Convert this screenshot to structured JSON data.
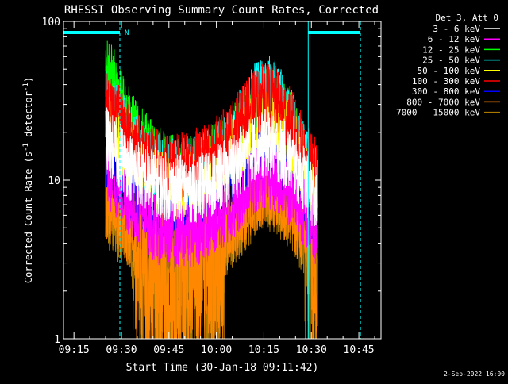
{
  "chart_data": {
    "type": "line",
    "title": "RHESSI Observing Summary Count Rates, Corrected",
    "xlabel": "Start Time (30-Jan-18 09:11:42)",
    "ylabel": "Corrected Count Rate (s⁻¹ detector⁻¹)",
    "ylabel_parts": {
      "pre": "Corrected Count Rate (s",
      "sup1": "-1",
      "mid": " detector",
      "sup2": "-1",
      "post": ")"
    },
    "yscale": "log",
    "ylim": [
      1,
      100
    ],
    "y_ticks": [
      {
        "value": 1,
        "label": "1"
      },
      {
        "value": 10,
        "label": "10"
      },
      {
        "value": 100,
        "label": "100"
      }
    ],
    "xlim": [
      "09:11:42",
      "10:52:00"
    ],
    "x_ticks": [
      {
        "value": "09:15",
        "label": "09:15"
      },
      {
        "value": "09:30",
        "label": "09:30"
      },
      {
        "value": "09:45",
        "label": "09:45"
      },
      {
        "value": "10:00",
        "label": "10:00"
      },
      {
        "value": "10:15",
        "label": "10:15"
      },
      {
        "value": "10:30",
        "label": "10:30"
      },
      {
        "value": "10:45",
        "label": "10:45"
      }
    ],
    "legend_header": "Det 3, Att 0",
    "legend_placement": "right",
    "data_start": "09:25",
    "data_end": "10:32",
    "x": [
      "09:25",
      "09:27",
      "09:30",
      "09:33",
      "09:36",
      "09:39",
      "09:42",
      "09:45",
      "09:48",
      "09:51",
      "09:54",
      "09:57",
      "10:00",
      "10:03",
      "10:06",
      "10:09",
      "10:12",
      "10:15",
      "10:18",
      "10:21",
      "10:24",
      "10:27",
      "10:30",
      "10:32"
    ],
    "series": [
      {
        "name": "3 - 6 keV",
        "color": "#ffffff",
        "values": [
          18,
          16,
          14,
          12,
          11,
          10,
          9.5,
          9,
          8.8,
          8.8,
          9,
          9.5,
          10,
          11,
          12.5,
          14,
          16,
          17,
          16.5,
          15,
          13,
          11,
          8.5,
          7
        ]
      },
      {
        "name": "6 - 12 keV",
        "color": "#ff00ff",
        "values": [
          12,
          10,
          8.5,
          7,
          6,
          5.3,
          4.8,
          4.6,
          4.5,
          4.6,
          4.8,
          5.1,
          5.5,
          6.2,
          7.2,
          8.5,
          10,
          11,
          10.5,
          9.5,
          8,
          6.5,
          5.5,
          4.5
        ]
      },
      {
        "name": "12 - 25 keV",
        "color": "#00ff00",
        "values": [
          50,
          45,
          30,
          22,
          18,
          15,
          13,
          12,
          11.5,
          11.5,
          12,
          13,
          14,
          16,
          19,
          23,
          28,
          32,
          31,
          27,
          21,
          15,
          10,
          9
        ]
      },
      {
        "name": "25 - 50 keV",
        "color": "#00ffff",
        "values": [
          30,
          27,
          22,
          18,
          15,
          13,
          12,
          11,
          11,
          11,
          11.5,
          12.5,
          14,
          16,
          20,
          26,
          33,
          38,
          36,
          30,
          22,
          15,
          11,
          9.5
        ]
      },
      {
        "name": "50 - 100 keV",
        "color": "#ffff00",
        "values": [
          26,
          22,
          18,
          14,
          12,
          10.5,
          9.5,
          9,
          9,
          9.2,
          9.7,
          10.5,
          11.5,
          13.5,
          16,
          19,
          23,
          25,
          24,
          21,
          17,
          13,
          10,
          8.5
        ]
      },
      {
        "name": "100 - 300 keV",
        "color": "#ff0000",
        "values": [
          30,
          27,
          23,
          19,
          16,
          14,
          12.5,
          12,
          12,
          12.5,
          13,
          14,
          15.5,
          17.5,
          21,
          25,
          30,
          33,
          32,
          28,
          22,
          16,
          12,
          11
        ]
      },
      {
        "name": "300 - 800 keV",
        "color": "#0000ff",
        "values": [
          14,
          13,
          11,
          9,
          8,
          7.5,
          7,
          7,
          7,
          7.2,
          7.6,
          8.2,
          9,
          10,
          11.5,
          13,
          15,
          16,
          15,
          13.5,
          11.5,
          9,
          7,
          6
        ]
      },
      {
        "name": "800 - 7000 keV",
        "color": "#ff8800",
        "values": [
          7,
          6.5,
          5.5,
          4.5,
          3.5,
          3,
          2.6,
          2.5,
          2.5,
          2.6,
          2.8,
          3,
          3.5,
          4.2,
          5.2,
          6.2,
          7.5,
          8.5,
          8.2,
          7.2,
          6,
          4.5,
          3.5,
          3
        ]
      },
      {
        "name": "7000 - 15000 keV",
        "color": "#aa7700",
        "values": [
          6,
          5.5,
          4.8,
          4,
          3.2,
          2.8,
          2.5,
          2.4,
          2.4,
          2.5,
          2.7,
          2.9,
          3.3,
          4,
          4.8,
          5.8,
          7,
          8,
          7.7,
          6.8,
          5.6,
          4.3,
          3.3,
          2.8
        ]
      }
    ],
    "attenuator_bars": [
      {
        "start": "09:11:42",
        "end": "09:29:30",
        "label": "N"
      },
      {
        "start": "10:29:00",
        "end": "10:45:30",
        "label": ""
      }
    ],
    "vertical_lines": [
      {
        "time": "09:11:42",
        "style": "solid"
      },
      {
        "time": "09:29:30",
        "style": "dashed"
      },
      {
        "time": "10:29:00",
        "style": "solid"
      },
      {
        "time": "10:45:30",
        "style": "dashed"
      }
    ],
    "overlay_color": "#00ffff"
  },
  "footer": {
    "date_stamp": "2-Sep-2022 16:00"
  }
}
